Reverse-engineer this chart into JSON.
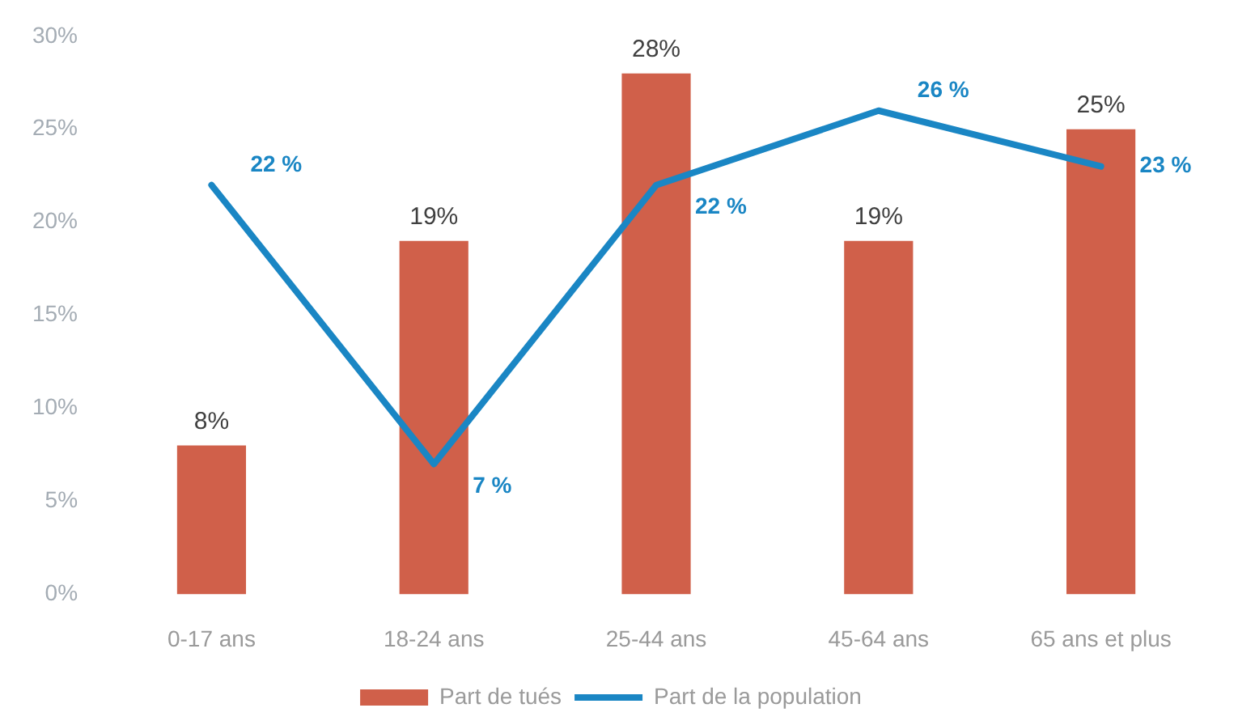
{
  "chart_data": {
    "type": "bar",
    "categories": [
      "0-17 ans",
      "18-24 ans",
      "25-44 ans",
      "45-64 ans",
      "65 ans et plus"
    ],
    "series": [
      {
        "name": "Part de tués",
        "color": "#d0604a",
        "values": [
          8,
          19,
          28,
          19,
          25
        ],
        "value_labels": [
          "8%",
          "19%",
          "28%",
          "19%",
          "25%"
        ]
      },
      {
        "name": "Part de la population",
        "type": "line",
        "color": "#1a86c4",
        "values": [
          22,
          7,
          22,
          26,
          23
        ],
        "value_labels": [
          "22 %",
          "7 %",
          "22 %",
          "26 %",
          "23 %"
        ]
      }
    ],
    "ylim": [
      0,
      30
    ],
    "yticks": [
      {
        "value": 0,
        "label": "0%"
      },
      {
        "value": 5,
        "label": "5%"
      },
      {
        "value": 10,
        "label": "10%"
      },
      {
        "value": 15,
        "label": "15%"
      },
      {
        "value": 20,
        "label": "20%"
      },
      {
        "value": 25,
        "label": "25%"
      },
      {
        "value": 30,
        "label": "30%"
      }
    ],
    "grid": false,
    "legend": "bottom"
  }
}
